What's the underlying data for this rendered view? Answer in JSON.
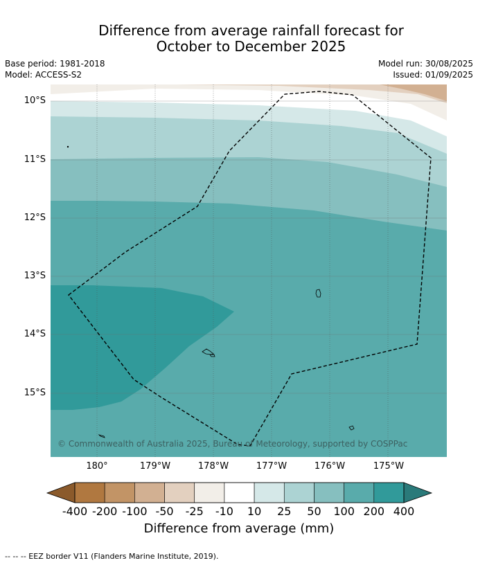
{
  "title_line1": "Difference from average rainfall forecast for",
  "title_line2": "October to December 2025",
  "base_period": "Base period: 1981-2018",
  "model": "Model: ACCESS-S2",
  "model_run": "Model run: 30/08/2025",
  "issued": "Issued: 01/09/2025",
  "copyright": "© Commonwealth of Australia 2025, Bureau of Meteorology, supported by COSPPac",
  "lat_labels": [
    "10°S",
    "11°S",
    "12°S",
    "13°S",
    "14°S",
    "15°S"
  ],
  "lon_labels": [
    "180°",
    "179°W",
    "178°W",
    "177°W",
    "176°W",
    "175°W"
  ],
  "colorbar": {
    "title": "Difference from average (mm)",
    "labels": [
      "-400",
      "-200",
      "-100",
      "-50",
      "-25",
      "-10",
      "10",
      "25",
      "50",
      "100",
      "200",
      "400"
    ],
    "colors": [
      "#8b5a2b",
      "#b07840",
      "#c29466",
      "#d2b092",
      "#e3d0bf",
      "#f2eee8",
      "#ffffff",
      "#d5e8e8",
      "#acd3d3",
      "#86bfbf",
      "#59abab",
      "#319a9a",
      "#2a7a7a"
    ]
  },
  "footnote": "--  --  -- EEZ border V11 (Flanders Marine Institute, 2019)."
}
